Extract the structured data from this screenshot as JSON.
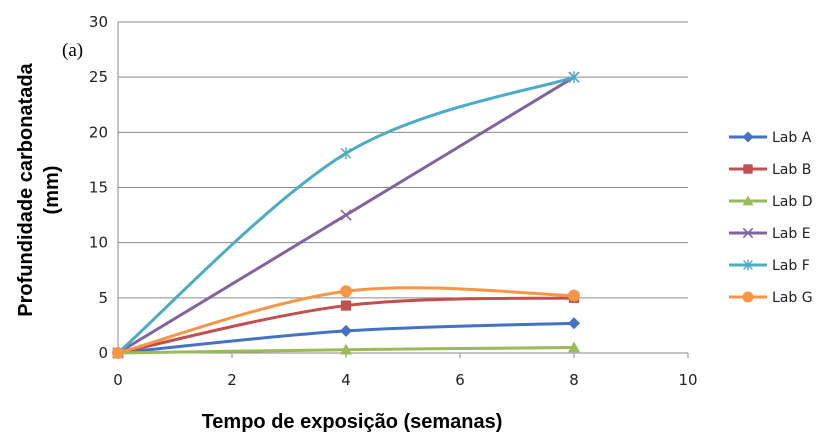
{
  "chart_data": {
    "type": "line",
    "title": "",
    "annotation": "(a)",
    "xlabel": "Tempo de exposição (semanas)",
    "ylabel_lines": [
      "Profundidade carbonatada",
      "(mm)"
    ],
    "xlim": [
      0,
      10
    ],
    "ylim": [
      0,
      30
    ],
    "xticks": [
      "0",
      "2",
      "4",
      "6",
      "8",
      "10"
    ],
    "yticks": [
      "0",
      "5",
      "10",
      "15",
      "20",
      "25",
      "30"
    ],
    "grid": "horizontal",
    "legend_position": "right",
    "series": [
      {
        "name": "Lab A",
        "marker": "diamond",
        "color": "#4472C4",
        "x": [
          0,
          4,
          8
        ],
        "y": [
          0,
          2.0,
          2.7
        ]
      },
      {
        "name": "Lab B",
        "marker": "square",
        "color": "#C0504D",
        "x": [
          0,
          4,
          8
        ],
        "y": [
          0,
          4.3,
          5.0
        ]
      },
      {
        "name": "Lab D",
        "marker": "triangle",
        "color": "#9BBB59",
        "x": [
          0,
          4,
          8
        ],
        "y": [
          0,
          0.3,
          0.5
        ]
      },
      {
        "name": "Lab E",
        "marker": "x",
        "color": "#8064A2",
        "x": [
          0,
          4,
          8
        ],
        "y": [
          0,
          12.5,
          25.0
        ]
      },
      {
        "name": "Lab F",
        "marker": "star",
        "color": "#4BACC6",
        "x": [
          0,
          4,
          8
        ],
        "y": [
          0,
          18.1,
          25.0
        ]
      },
      {
        "name": "Lab G",
        "marker": "circle",
        "color": "#F79646",
        "x": [
          0,
          4,
          8
        ],
        "y": [
          0,
          5.6,
          5.2
        ]
      }
    ]
  }
}
